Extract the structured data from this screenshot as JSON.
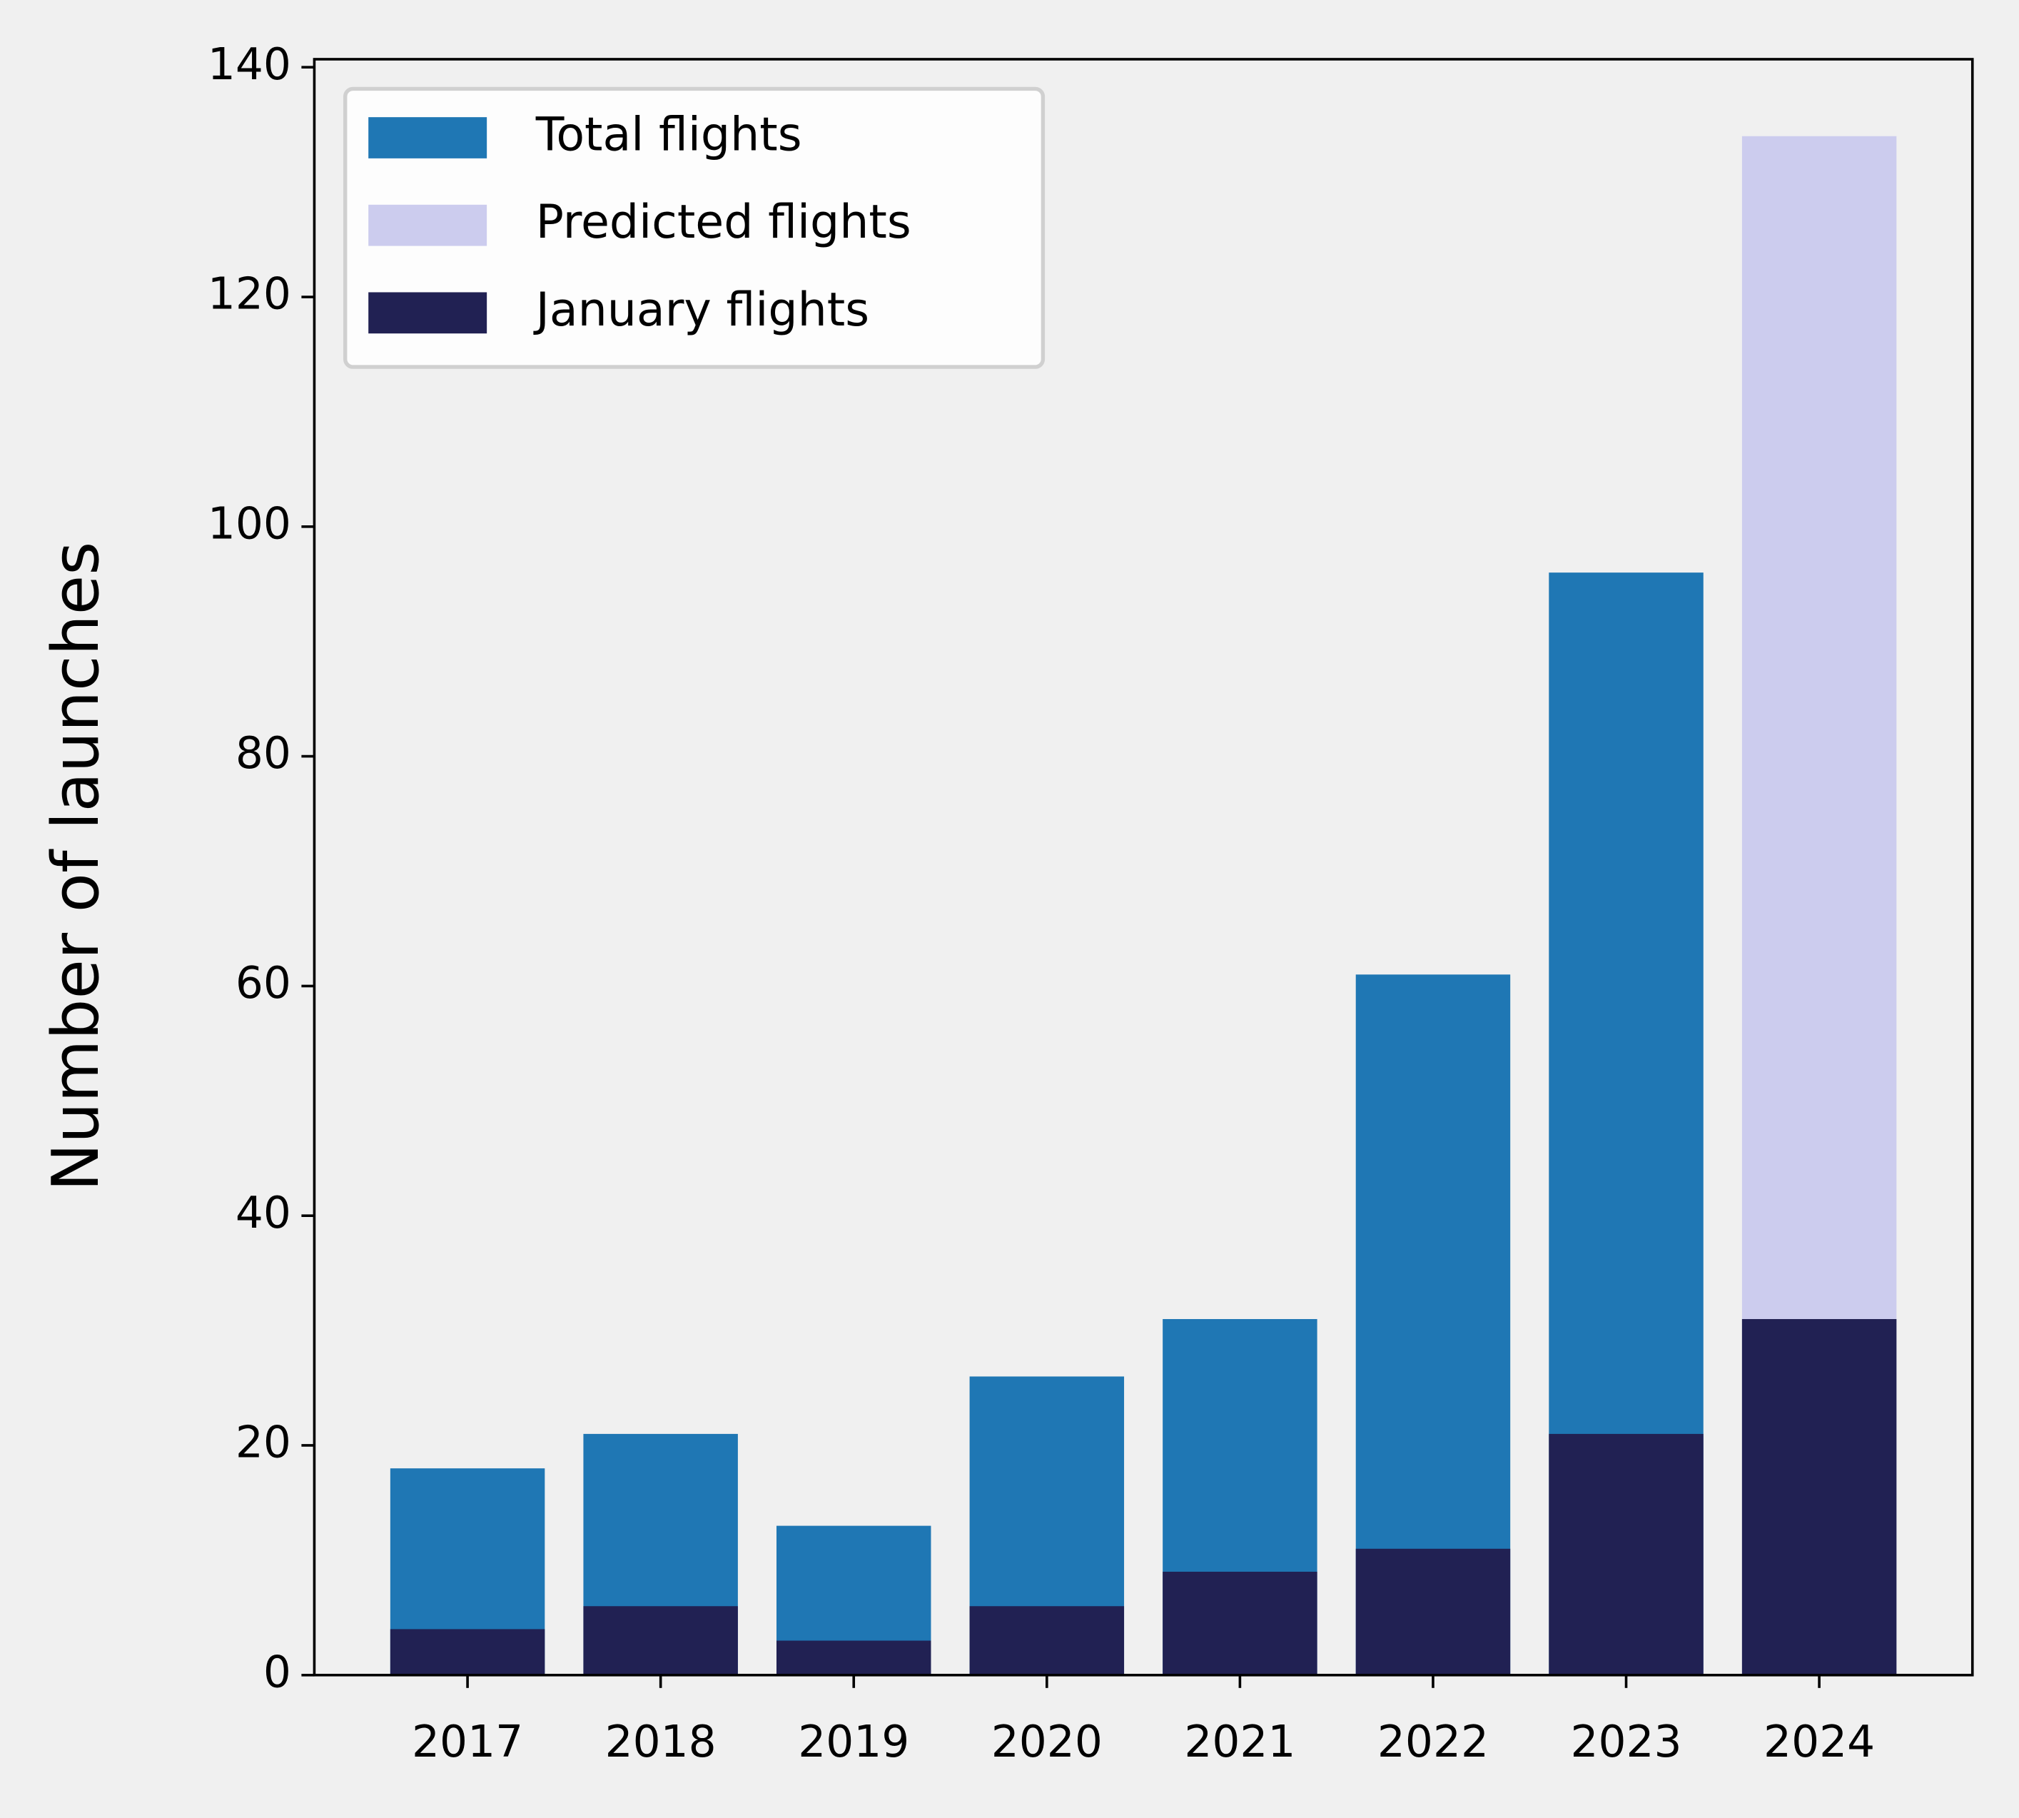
{
  "chart_data": {
    "type": "bar",
    "y_label": "Number of launches",
    "categories": [
      "2017",
      "2018",
      "2019",
      "2020",
      "2021",
      "2022",
      "2023",
      "2024"
    ],
    "series": [
      {
        "name": "Total flights",
        "color": "#1f77b4",
        "values": [
          18,
          21,
          13,
          26,
          31,
          61,
          96,
          null
        ]
      },
      {
        "name": "Predicted flights",
        "color": "#ccccee",
        "values": [
          null,
          null,
          null,
          null,
          null,
          null,
          null,
          134
        ]
      },
      {
        "name": "January flights",
        "color": "#212153",
        "values": [
          4,
          6,
          3,
          6,
          9,
          11,
          21,
          31
        ]
      }
    ],
    "ylim": [
      0,
      140.7
    ],
    "yticks": [
      0,
      20,
      40,
      60,
      80,
      100,
      120,
      140
    ],
    "legend": "upper left",
    "grid": false
  }
}
